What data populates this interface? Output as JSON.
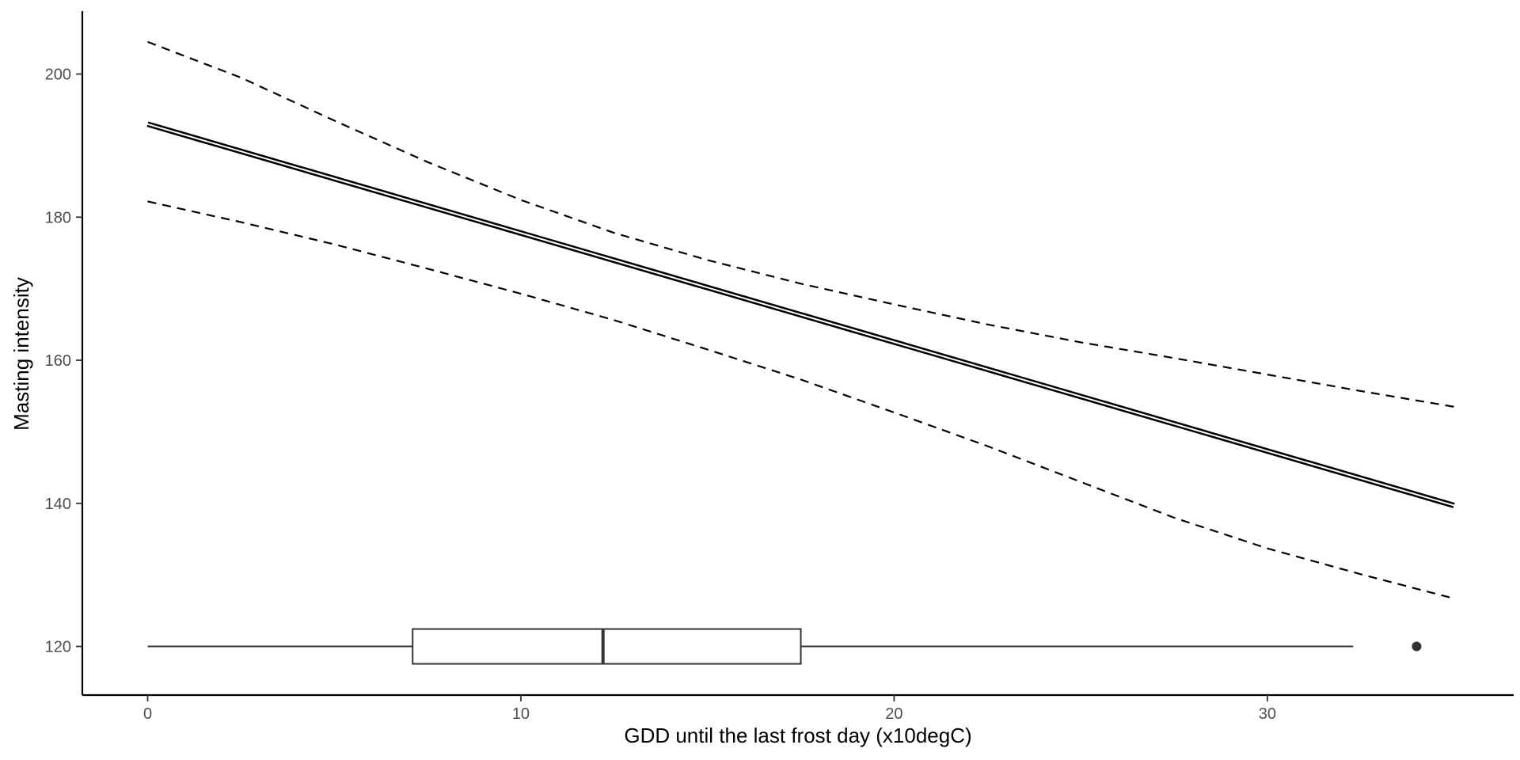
{
  "chart_data": {
    "type": "line",
    "title": "",
    "xlabel": "GDD until the last frost day (x10degC)",
    "ylabel": "Masting intensity",
    "xlim": [
      -1.75,
      36.6
    ],
    "ylim": [
      113.2,
      208.8
    ],
    "x_ticks": [
      0,
      10,
      20,
      30
    ],
    "y_ticks": [
      120,
      140,
      160,
      180,
      200
    ],
    "grid": false,
    "legend": "none",
    "series": [
      {
        "style": "double-solid",
        "x": [
          0,
          35
        ],
        "y": [
          193,
          139.7
        ]
      },
      {
        "style": "dashed",
        "x": [
          0,
          2.5,
          5,
          7.5,
          10,
          12.5,
          15,
          17.5,
          20,
          22.5,
          25,
          27.5,
          30,
          32.5,
          35
        ],
        "y": [
          204.5,
          199.5,
          193.5,
          187.7,
          182.4,
          177.8,
          174.0,
          170.7,
          167.8,
          165.0,
          162.5,
          160.3,
          158.0,
          155.7,
          153.5
        ]
      },
      {
        "style": "dashed",
        "x": [
          0,
          2.5,
          5,
          7.5,
          10,
          12.5,
          15,
          17.5,
          20,
          22.5,
          25,
          27.5,
          30,
          32.5,
          35
        ],
        "y": [
          182.2,
          179.3,
          176.2,
          172.8,
          169.3,
          165.6,
          161.5,
          157.3,
          152.7,
          148.0,
          143.0,
          138.0,
          133.7,
          130.1,
          126.7
        ]
      }
    ],
    "boxplot": {
      "y": 120,
      "min": 0,
      "q1": 7.1,
      "median": 12.2,
      "q3": 17.5,
      "max": 32.3,
      "outliers": [
        34.0
      ]
    }
  }
}
